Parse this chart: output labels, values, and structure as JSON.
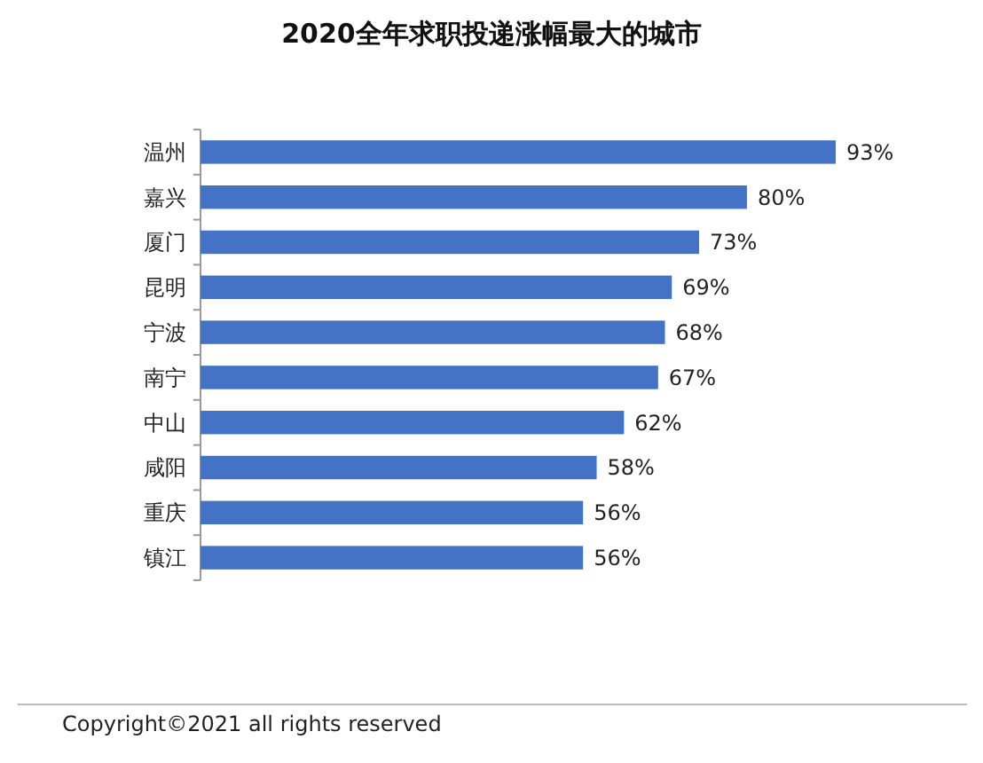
{
  "chart_data": {
    "type": "bar",
    "orientation": "horizontal",
    "title": "2020全年求职投递涨幅最大的城市",
    "categories": [
      "温州",
      "嘉兴",
      "厦门",
      "昆明",
      "宁波",
      "南宁",
      "中山",
      "咸阳",
      "重庆",
      "镇江"
    ],
    "values": [
      93,
      80,
      73,
      69,
      68,
      67,
      62,
      58,
      56,
      56
    ],
    "value_labels": [
      "93%",
      "80%",
      "73%",
      "69%",
      "68%",
      "67%",
      "62%",
      "58%",
      "56%",
      "56%"
    ],
    "color": "#4472c4",
    "annotations": [
      "Copyright©2021 all rights reserved"
    ]
  }
}
